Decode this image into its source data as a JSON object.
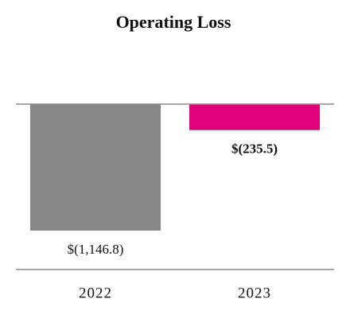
{
  "chart_data": {
    "type": "bar",
    "title": "Operating Loss",
    "categories": [
      "2022",
      "2023"
    ],
    "values": [
      -1146.8,
      -235.5
    ],
    "value_labels": [
      "$(1,146.8)",
      "$(235.5)"
    ],
    "colors": [
      "#878787",
      "#e0007a"
    ],
    "ylim": [
      -1500,
      0
    ]
  }
}
